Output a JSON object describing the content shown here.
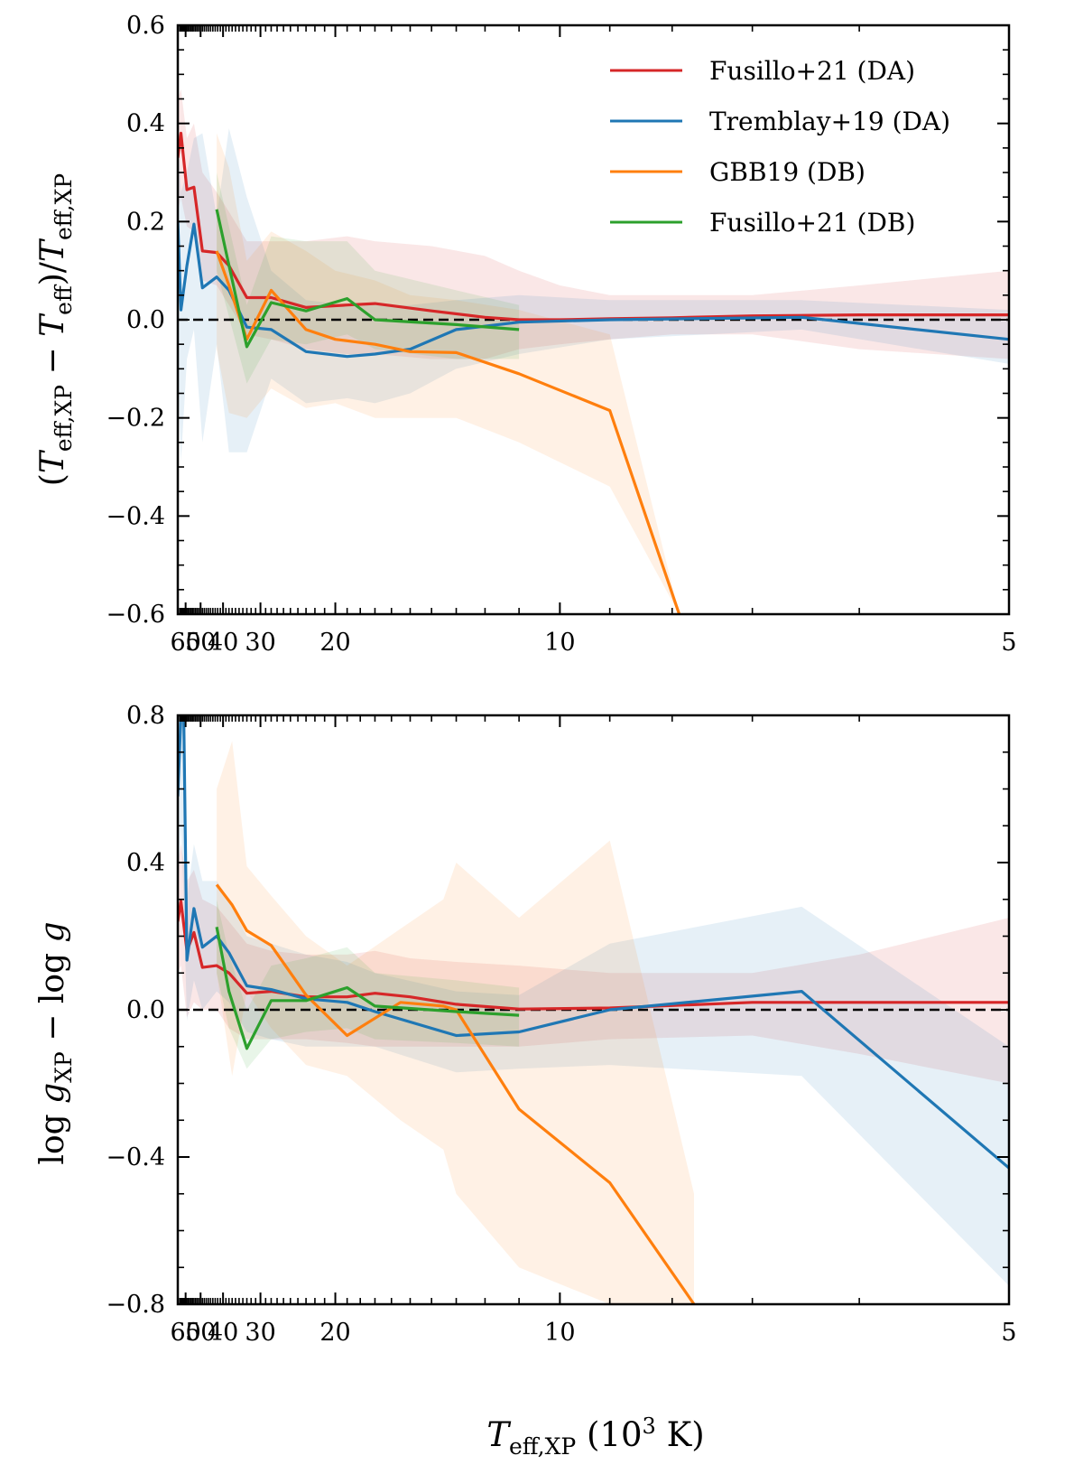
{
  "chart_data": [
    {
      "type": "line",
      "panel": "top",
      "ylabel": "(T_eff,XP − T_eff)/T_eff,XP",
      "ylabel_parts": {
        "open": "(",
        "T": "T",
        "sub": "eff,XP",
        "minus": " − ",
        "T2": "T",
        "sub2": "eff",
        "mid": ")/",
        "T3": "T",
        "sub3": "eff,XP"
      },
      "xlabel": "",
      "x_scale": "inverse",
      "xlim": [
        67,
        5
      ],
      "ylim": [
        -0.6,
        0.6
      ],
      "x_ticks": [
        60,
        50,
        40,
        30,
        20,
        10,
        5
      ],
      "x_tick_labels": [
        "60",
        "50",
        "40",
        "30",
        "20",
        "10",
        "5"
      ],
      "y_ticks": [
        -0.6,
        -0.4,
        -0.2,
        0.0,
        0.2,
        0.4,
        0.6
      ],
      "y_tick_labels": [
        "−0.6",
        "−0.4",
        "−0.2",
        "0.0",
        "0.2",
        "0.4",
        "0.6"
      ],
      "reference_line": 0.0,
      "legend": {
        "position": "top-right",
        "entries": [
          "Fusillo+21 (DA)",
          "Tremblay+19 (DA)",
          "GBB19 (DB)",
          "Fusillo+21 (DB)"
        ]
      },
      "series": [
        {
          "name": "Fusillo+21 (DA)",
          "color": "#d62728",
          "x": [
            67,
            64,
            59,
            54,
            49,
            42.4,
            38,
            33,
            28,
            23,
            19,
            17,
            14,
            12,
            11,
            10,
            9,
            8,
            7,
            6,
            5
          ],
          "y": [
            0.33,
            0.38,
            0.265,
            0.27,
            0.14,
            0.137,
            0.11,
            0.045,
            0.045,
            0.025,
            0.03,
            0.033,
            0.018,
            0.005,
            0.0,
            0.0,
            0.002,
            0.004,
            0.008,
            0.01,
            0.01
          ],
          "lower": [
            0.22,
            0.25,
            0.19,
            0.18,
            0.08,
            0.07,
            0.03,
            -0.03,
            -0.04,
            -0.06,
            -0.07,
            -0.07,
            -0.08,
            -0.08,
            -0.06,
            -0.05,
            -0.04,
            -0.03,
            -0.03,
            -0.06,
            -0.08
          ],
          "upper": [
            0.45,
            0.47,
            0.37,
            0.4,
            0.3,
            0.26,
            0.22,
            0.16,
            0.16,
            0.16,
            0.17,
            0.16,
            0.15,
            0.13,
            0.1,
            0.07,
            0.05,
            0.05,
            0.05,
            0.07,
            0.1
          ]
        },
        {
          "name": "Tremblay+19 (DA)",
          "color": "#1f77b4",
          "x": [
            67,
            64,
            59,
            54,
            49,
            42.4,
            38,
            33,
            28,
            23,
            19,
            17,
            15,
            13,
            11,
            9,
            6.5,
            5
          ],
          "y": [
            0.2,
            0.02,
            0.11,
            0.195,
            0.065,
            0.087,
            0.06,
            -0.015,
            -0.02,
            -0.065,
            -0.075,
            -0.07,
            -0.06,
            -0.02,
            -0.005,
            0.0,
            0.005,
            -0.04
          ],
          "lower": [
            -0.1,
            -0.29,
            -0.08,
            -0.02,
            -0.25,
            -0.05,
            -0.27,
            -0.27,
            -0.12,
            -0.17,
            -0.16,
            -0.17,
            -0.15,
            -0.1,
            -0.07,
            -0.04,
            -0.02,
            -0.09
          ],
          "upper": [
            0.4,
            0.26,
            0.3,
            0.37,
            0.38,
            0.21,
            0.39,
            0.25,
            0.1,
            0.04,
            0.03,
            0.03,
            0.03,
            0.04,
            0.05,
            0.04,
            0.04,
            0.02
          ]
        },
        {
          "name": "GBB19 (DB)",
          "color": "#ff7f0e",
          "x": [
            42.4,
            38,
            33,
            28,
            23,
            20,
            17,
            15,
            13,
            11,
            9,
            7.9
          ],
          "y": [
            0.14,
            0.07,
            -0.04,
            0.06,
            -0.02,
            -0.04,
            -0.05,
            -0.065,
            -0.067,
            -0.11,
            -0.185,
            -0.6
          ],
          "lower": [
            -0.06,
            -0.19,
            -0.2,
            -0.14,
            -0.18,
            -0.17,
            -0.2,
            -0.2,
            -0.2,
            -0.25,
            -0.34,
            -0.6
          ],
          "upper": [
            0.38,
            0.31,
            0.12,
            0.18,
            0.14,
            0.1,
            0.08,
            0.05,
            0.04,
            0.02,
            -0.03,
            -0.6
          ]
        },
        {
          "name": "Fusillo+21 (DB)",
          "color": "#2ca02c",
          "x": [
            42.4,
            33,
            28,
            23,
            19,
            17,
            13,
            11
          ],
          "y": [
            0.225,
            -0.055,
            0.035,
            0.018,
            0.043,
            0.0,
            -0.01,
            -0.02
          ],
          "lower": [
            0.1,
            -0.13,
            -0.04,
            -0.05,
            -0.03,
            -0.06,
            -0.08,
            -0.08
          ],
          "upper": [
            0.3,
            0.03,
            0.17,
            0.16,
            0.16,
            0.1,
            0.06,
            0.03
          ]
        }
      ]
    },
    {
      "type": "line",
      "panel": "bottom",
      "ylabel": "log g_XP − log g",
      "ylabel_parts": {
        "log": "log ",
        "g": "g",
        "sub": "XP",
        "rest": " − log ",
        "g2": "g"
      },
      "xlabel": "T_eff,XP (10^3 K)",
      "xlabel_parts": {
        "T": "T",
        "sub": "eff,XP",
        "open": " (10",
        "sup": "3",
        "close": " K)"
      },
      "x_scale": "inverse",
      "xlim": [
        67,
        5
      ],
      "ylim": [
        -0.8,
        0.8
      ],
      "x_ticks": [
        60,
        50,
        40,
        30,
        20,
        10,
        5
      ],
      "x_tick_labels": [
        "60",
        "50",
        "40",
        "30",
        "20",
        "10",
        "5"
      ],
      "y_ticks": [
        -0.8,
        -0.4,
        0.0,
        0.4,
        0.8
      ],
      "y_tick_labels": [
        "−0.8",
        "−0.4",
        "0.0",
        "0.4",
        "0.8"
      ],
      "reference_line": 0.0,
      "series": [
        {
          "name": "Fusillo+21 (DA)",
          "color": "#d62728",
          "x": [
            67,
            64,
            59,
            54,
            49,
            42.4,
            38,
            33,
            28,
            23,
            19,
            17,
            15,
            13,
            11,
            9,
            7,
            6,
            5
          ],
          "y": [
            0.24,
            0.295,
            0.16,
            0.21,
            0.115,
            0.12,
            0.1,
            0.045,
            0.05,
            0.035,
            0.035,
            0.045,
            0.035,
            0.015,
            0.002,
            0.005,
            0.02,
            0.02,
            0.02
          ],
          "lower": [
            0.1,
            0.12,
            -0.02,
            0.02,
            0.0,
            0.0,
            -0.05,
            -0.08,
            -0.08,
            -0.08,
            -0.09,
            -0.1,
            -0.1,
            -0.1,
            -0.1,
            -0.08,
            -0.07,
            -0.12,
            -0.2
          ],
          "upper": [
            0.4,
            0.45,
            0.35,
            0.38,
            0.3,
            0.28,
            0.24,
            0.18,
            0.16,
            0.15,
            0.15,
            0.16,
            0.14,
            0.13,
            0.12,
            0.1,
            0.1,
            0.15,
            0.25
          ]
        },
        {
          "name": "Tremblay+19 (DA)",
          "color": "#1f77b4",
          "x": [
            67,
            64,
            61.5,
            59,
            54,
            49,
            42.4,
            38,
            33,
            28,
            23,
            19,
            17,
            13,
            11,
            9,
            6.5,
            5
          ],
          "y": [
            0.58,
            0.8,
            0.8,
            0.135,
            0.275,
            0.17,
            0.2,
            0.155,
            0.065,
            0.055,
            0.03,
            0.02,
            -0.005,
            -0.07,
            -0.06,
            0.0,
            0.05,
            -0.43
          ],
          "lower": [
            0.3,
            0.5,
            0.3,
            -0.03,
            0.08,
            0.0,
            0.05,
            0.02,
            -0.06,
            -0.08,
            -0.1,
            -0.1,
            -0.1,
            -0.17,
            -0.16,
            -0.15,
            -0.18,
            -0.75
          ],
          "upper": [
            0.8,
            0.8,
            0.8,
            0.3,
            0.45,
            0.35,
            0.35,
            0.3,
            0.2,
            0.18,
            0.15,
            0.13,
            0.1,
            0.05,
            0.04,
            0.18,
            0.28,
            -0.1
          ]
        },
        {
          "name": "GBB19 (DB)",
          "color": "#ff7f0e",
          "x": [
            42.4,
            37,
            33,
            28,
            23,
            19,
            15.5,
            13.5,
            13,
            11,
            9,
            7.7
          ],
          "y": [
            0.34,
            0.285,
            0.215,
            0.175,
            0.04,
            -0.07,
            0.02,
            0.01,
            0.0,
            -0.27,
            -0.47,
            -0.8
          ],
          "lower": [
            0.1,
            -0.18,
            0.05,
            -0.05,
            -0.15,
            -0.18,
            -0.3,
            -0.38,
            -0.5,
            -0.7,
            -0.8,
            -0.8
          ],
          "upper": [
            0.6,
            0.73,
            0.39,
            0.31,
            0.2,
            0.12,
            0.22,
            0.3,
            0.4,
            0.25,
            0.46,
            -0.5
          ]
        },
        {
          "name": "Fusillo+21 (DB)",
          "color": "#2ca02c",
          "x": [
            42.4,
            38,
            33,
            28,
            23,
            19,
            17,
            13,
            11
          ],
          "y": [
            0.225,
            0.05,
            -0.105,
            0.025,
            0.025,
            0.06,
            0.01,
            -0.005,
            -0.015
          ],
          "lower": [
            0.1,
            -0.05,
            -0.16,
            -0.08,
            -0.06,
            -0.05,
            -0.08,
            -0.09,
            -0.1
          ],
          "upper": [
            0.3,
            0.15,
            0.0,
            0.12,
            0.14,
            0.17,
            0.1,
            0.08,
            0.06
          ]
        }
      ]
    }
  ]
}
